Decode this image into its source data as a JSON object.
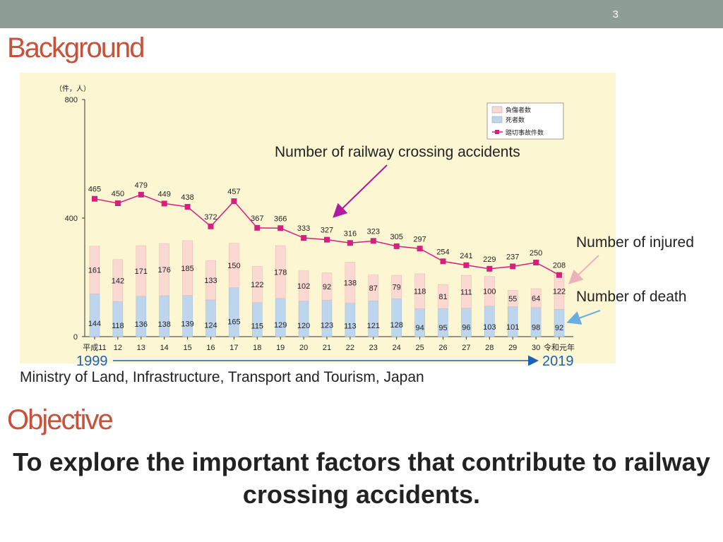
{
  "slide": {
    "number": "3",
    "background_title": "Background",
    "objective_title": "Objective",
    "objective_text": "To explore the important factors that contribute to railway crossing accidents.",
    "source": "Ministry of Land, Infrastructure, Transport and Tourism, Japan",
    "callouts": {
      "accidents": "Number of railway crossing accidents",
      "injured": "Number of injured",
      "death": "Number of death"
    },
    "year_start": "1999",
    "year_end": "2019"
  },
  "colors": {
    "title": "#c8513a",
    "topbar": "#8e9e96",
    "chart_bg": "#fdf6d3",
    "injured": "#fad9d2",
    "death": "#bdd6ee",
    "line": "#d6207f",
    "arrow_blue": "#1f5fb8"
  },
  "chart_data": {
    "type": "bar",
    "unit_label": "（件，人）",
    "yticks": [
      0,
      400,
      800
    ],
    "ylim": [
      0,
      800
    ],
    "categories": [
      "平成11",
      "12",
      "13",
      "14",
      "15",
      "16",
      "17",
      "18",
      "19",
      "20",
      "21",
      "22",
      "23",
      "24",
      "25",
      "26",
      "27",
      "28",
      "29",
      "30",
      "令和元年"
    ],
    "legend": [
      "負傷者数",
      "死者数",
      "踏切事故件数"
    ],
    "series": [
      {
        "name": "負傷者数",
        "kind": "bar",
        "stack": "top",
        "values": [
          161,
          142,
          171,
          176,
          185,
          133,
          150,
          122,
          178,
          102,
          92,
          138,
          87,
          79,
          118,
          81,
          111,
          100,
          55,
          64,
          122
        ]
      },
      {
        "name": "死者数",
        "kind": "bar",
        "stack": "bottom",
        "values": [
          144,
          118,
          136,
          138,
          139,
          124,
          165,
          115,
          129,
          120,
          123,
          113,
          121,
          128,
          94,
          95,
          96,
          103,
          101,
          98,
          92
        ]
      },
      {
        "name": "踏切事故件数",
        "kind": "line",
        "values": [
          465,
          450,
          479,
          449,
          438,
          372,
          457,
          367,
          366,
          333,
          327,
          316,
          323,
          305,
          297,
          254,
          241,
          229,
          237,
          250,
          208
        ]
      }
    ]
  }
}
